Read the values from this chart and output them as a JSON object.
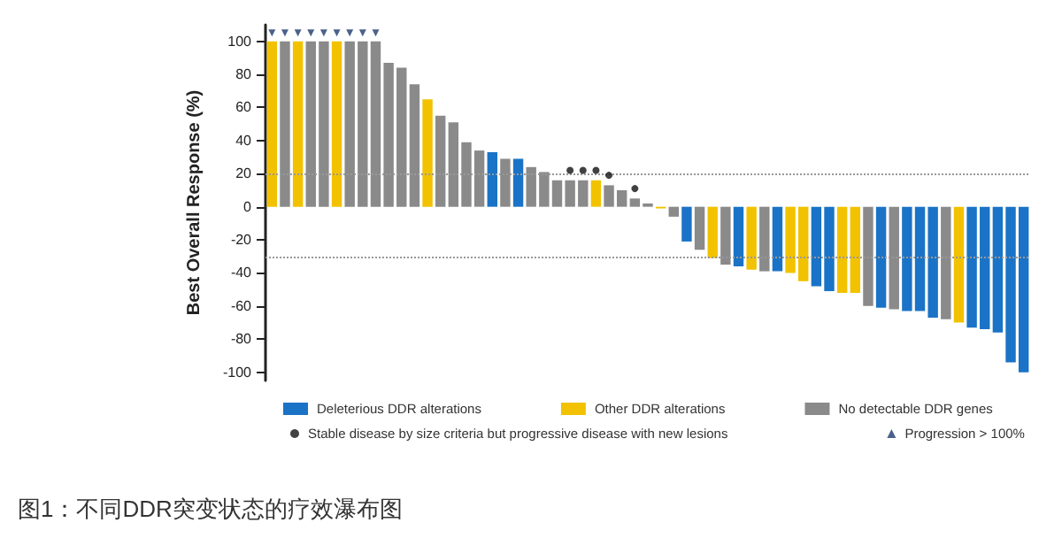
{
  "chart_data": {
    "type": "bar",
    "stacked": true,
    "ylabel": "Best Overall Response (%)",
    "annotations": [
      "图1：不同DDR突变状态的疗效瀑布图"
    ],
    "categories": [
      null,
      null,
      null,
      null,
      null,
      null,
      null,
      null,
      null,
      null,
      null,
      null,
      null,
      null,
      null,
      null,
      null,
      null,
      null,
      null,
      null,
      null,
      null,
      null,
      null,
      null,
      null,
      null,
      null,
      null,
      null,
      null,
      null,
      null,
      null,
      null,
      null,
      null,
      null,
      null,
      null,
      null,
      null,
      null,
      null,
      null,
      null,
      null,
      null,
      null,
      null,
      null,
      null,
      null,
      null,
      null,
      null,
      null,
      null
    ],
    "series": [
      {
        "name": "Deleterious DDR alterations",
        "color": "#1a73c6",
        "values": [
          null,
          null,
          null,
          null,
          null,
          null,
          null,
          null,
          null,
          null,
          null,
          null,
          null,
          null,
          null,
          null,
          null,
          33,
          null,
          29,
          null,
          null,
          null,
          null,
          null,
          null,
          null,
          null,
          null,
          null,
          null,
          null,
          -21,
          null,
          null,
          null,
          -36,
          null,
          null,
          -39,
          null,
          null,
          -48,
          -51,
          null,
          null,
          null,
          -61,
          null,
          -63,
          -63,
          -67,
          null,
          null,
          -73,
          -74,
          -76,
          -94,
          -100
        ]
      },
      {
        "name": "Other DDR alterations",
        "color": "#f2c200",
        "values": [
          100,
          null,
          100,
          null,
          null,
          100,
          null,
          null,
          null,
          null,
          null,
          null,
          65,
          null,
          null,
          null,
          null,
          null,
          null,
          null,
          null,
          null,
          null,
          null,
          null,
          16,
          null,
          null,
          null,
          null,
          -1,
          null,
          null,
          null,
          -31,
          null,
          null,
          -38,
          null,
          null,
          -40,
          -45,
          null,
          null,
          -52,
          -52,
          null,
          null,
          null,
          null,
          null,
          null,
          null,
          -70,
          null,
          null,
          null,
          null,
          null
        ]
      },
      {
        "name": "No detectable DDR genes",
        "color": "#8a8a8a",
        "values": [
          null,
          100,
          null,
          100,
          100,
          null,
          100,
          100,
          100,
          87,
          84,
          74,
          null,
          55,
          51,
          39,
          34,
          null,
          29,
          null,
          24,
          21,
          16,
          16,
          16,
          null,
          13,
          10,
          5,
          2,
          null,
          -6,
          null,
          -26,
          null,
          -35,
          null,
          null,
          -39,
          null,
          null,
          null,
          null,
          null,
          null,
          null,
          -60,
          null,
          -62,
          null,
          null,
          null,
          -68,
          null,
          null,
          null,
          null,
          null,
          null
        ]
      },
      {
        "name": "Stable disease by size criteria but progressive disease with new lesions",
        "type": "scatter",
        "marker": "circle",
        "color": "#111111",
        "values": [
          null,
          null,
          null,
          null,
          null,
          null,
          null,
          null,
          null,
          null,
          null,
          null,
          null,
          null,
          null,
          null,
          null,
          null,
          null,
          null,
          null,
          null,
          null,
          22,
          22,
          22,
          19,
          null,
          11,
          null,
          null,
          null,
          null,
          null,
          null,
          null,
          null,
          null,
          null,
          null,
          null,
          null,
          null,
          null,
          null,
          null,
          null,
          null,
          null,
          null,
          null,
          null,
          null,
          null,
          null,
          null,
          null,
          null,
          null
        ]
      },
      {
        "name": "Progression > 100%",
        "type": "scatter",
        "marker": "triangle",
        "color": "#1f3a6b",
        "values": [
          105,
          105,
          105,
          105,
          105,
          105,
          105,
          105,
          105,
          null,
          null,
          null,
          null,
          null,
          null,
          null,
          null,
          null,
          null,
          null,
          null,
          null,
          null,
          null,
          null,
          null,
          null,
          null,
          null,
          null,
          null,
          null,
          null,
          null,
          null,
          null,
          null,
          null,
          null,
          null,
          null,
          null,
          null,
          null,
          null,
          null,
          null,
          null,
          null,
          null,
          null,
          null,
          null,
          null,
          null,
          null,
          null,
          null,
          null
        ]
      }
    ],
    "ylim": [
      -105,
      110
    ],
    "yticks": [
      -100,
      -80,
      -60,
      -40,
      -20,
      0,
      20,
      40,
      60,
      80,
      100
    ],
    "ref_lines": [
      {
        "axis": "y",
        "value": 20,
        "color": "#999999",
        "line_style": "dotted"
      },
      {
        "axis": "y",
        "value": -30,
        "color": "#999999",
        "line_style": "dotted"
      }
    ],
    "legend": "bottom",
    "grid": false
  }
}
